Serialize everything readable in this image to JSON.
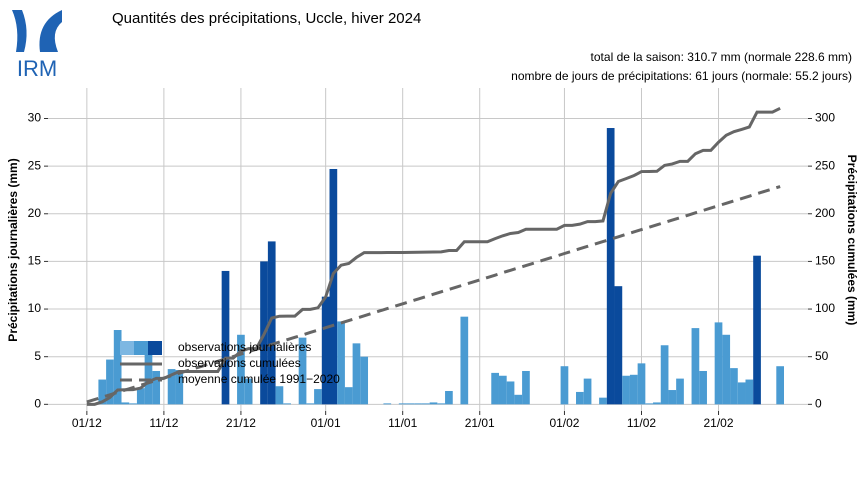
{
  "logo": {
    "text": "IRM"
  },
  "chart_data": {
    "type": "combo",
    "title": "Quantités des précipitations, Uccle, hiver 2024",
    "subtitles": [
      "total de la saison: 310.7 mm (normale 228.6 mm)",
      "nombre de jours de précipitations: 61 jours (normale: 55.2 jours)"
    ],
    "ylabel": "Précipitations journalières (mm)",
    "y2label": "Précipitations cumulées (mm)",
    "categories": [
      "01/12",
      null,
      null,
      null,
      null,
      null,
      null,
      null,
      null,
      null,
      "11/12",
      null,
      null,
      null,
      null,
      null,
      null,
      null,
      null,
      null,
      "21/12",
      null,
      null,
      null,
      null,
      null,
      null,
      null,
      null,
      null,
      null,
      "01/01",
      null,
      null,
      null,
      null,
      null,
      null,
      null,
      null,
      null,
      "11/01",
      null,
      null,
      null,
      null,
      null,
      null,
      null,
      null,
      null,
      "21/01",
      null,
      null,
      null,
      null,
      null,
      null,
      null,
      null,
      null,
      null,
      "01/02",
      null,
      null,
      null,
      null,
      null,
      null,
      null,
      null,
      null,
      "11/02",
      null,
      null,
      null,
      null,
      null,
      null,
      null,
      null,
      null,
      "21/02",
      null,
      null,
      null,
      null,
      null,
      null,
      null,
      null
    ],
    "ylim": [
      -0.7,
      33.2
    ],
    "yticks": [
      0,
      5,
      10,
      15,
      20,
      25,
      30
    ],
    "y2lim": [
      -7,
      332
    ],
    "y2ticks": [
      0,
      50,
      100,
      150,
      200,
      250,
      300
    ],
    "grid": true,
    "series": [
      {
        "name": "observations journalières",
        "type": "bar",
        "swatch": [
          "#7db7e2",
          "#4a9bd2",
          "#0a4a9c"
        ],
        "values": [
          0,
          0,
          2.6,
          4.7,
          7.8,
          0.2,
          0.1,
          1.7,
          6.6,
          3.5,
          0,
          3.7,
          3.6,
          0,
          0,
          0,
          0,
          0,
          14.0,
          0,
          7.3,
          2.7,
          0,
          15.0,
          17.1,
          1.9,
          0.1,
          0,
          7.0,
          0.1,
          1.6,
          11.3,
          24.7,
          8.7,
          1.8,
          6.4,
          5.0,
          0,
          0,
          0.1,
          0,
          0.1,
          0.1,
          0.1,
          0.1,
          0.2,
          0.1,
          1.4,
          0,
          9.2,
          0,
          0,
          0,
          3.3,
          3.0,
          2.4,
          1.0,
          3.5,
          0,
          0,
          0,
          0,
          4.0,
          0,
          1.3,
          2.7,
          0,
          0.7,
          29.0,
          12.4,
          3.0,
          3.1,
          4.3,
          0.1,
          0.2,
          6.2,
          1.5,
          2.7,
          0,
          8.0,
          3.5,
          0,
          8.6,
          7.3,
          3.8,
          2.3,
          2.6,
          15.6,
          0,
          0,
          4.0
        ],
        "colors": [
          "#4a9bd2",
          "#4a9bd2",
          "#4a9bd2",
          "#4a9bd2",
          "#4a9bd2",
          "#4a9bd2",
          "#4a9bd2",
          "#4a9bd2",
          "#4a9bd2",
          "#4a9bd2",
          "#4a9bd2",
          "#4a9bd2",
          "#4a9bd2",
          "#4a9bd2",
          "#4a9bd2",
          "#4a9bd2",
          "#4a9bd2",
          "#4a9bd2",
          "#0a4a9c",
          "#4a9bd2",
          "#4a9bd2",
          "#4a9bd2",
          "#4a9bd2",
          "#0a4a9c",
          "#0a4a9c",
          "#4a9bd2",
          "#4a9bd2",
          "#4a9bd2",
          "#4a9bd2",
          "#4a9bd2",
          "#4a9bd2",
          "#0a4a9c",
          "#0a4a9c",
          "#4a9bd2",
          "#4a9bd2",
          "#4a9bd2",
          "#4a9bd2",
          "#4a9bd2",
          "#4a9bd2",
          "#4a9bd2",
          "#4a9bd2",
          "#4a9bd2",
          "#4a9bd2",
          "#4a9bd2",
          "#4a9bd2",
          "#4a9bd2",
          "#4a9bd2",
          "#4a9bd2",
          "#4a9bd2",
          "#4a9bd2",
          "#4a9bd2",
          "#4a9bd2",
          "#4a9bd2",
          "#4a9bd2",
          "#4a9bd2",
          "#4a9bd2",
          "#4a9bd2",
          "#4a9bd2",
          "#4a9bd2",
          "#4a9bd2",
          "#4a9bd2",
          "#4a9bd2",
          "#4a9bd2",
          "#4a9bd2",
          "#4a9bd2",
          "#4a9bd2",
          "#4a9bd2",
          "#4a9bd2",
          "#0a4a9c",
          "#0a4a9c",
          "#4a9bd2",
          "#4a9bd2",
          "#4a9bd2",
          "#4a9bd2",
          "#4a9bd2",
          "#4a9bd2",
          "#4a9bd2",
          "#4a9bd2",
          "#4a9bd2",
          "#4a9bd2",
          "#4a9bd2",
          "#4a9bd2",
          "#4a9bd2",
          "#4a9bd2",
          "#4a9bd2",
          "#4a9bd2",
          "#4a9bd2",
          "#0a4a9c",
          "#4a9bd2",
          "#4a9bd2",
          "#4a9bd2"
        ]
      },
      {
        "name": "observations cumulées",
        "type": "line",
        "axis": "y2",
        "color": "#666666",
        "dashed": false,
        "values": [
          0,
          0,
          2.6,
          7.3,
          15.1,
          15.3,
          15.4,
          17.1,
          23.7,
          27.2,
          27.2,
          30.9,
          34.5,
          34.5,
          34.5,
          34.5,
          34.5,
          34.5,
          48.5,
          48.5,
          55.8,
          58.5,
          58.5,
          73.5,
          90.6,
          92.5,
          92.6,
          92.6,
          99.6,
          99.7,
          101.3,
          112.6,
          137.3,
          146.0,
          147.8,
          154.2,
          159.2,
          159.2,
          159.2,
          159.3,
          159.3,
          159.4,
          159.5,
          159.6,
          159.7,
          159.9,
          160.0,
          161.4,
          161.4,
          170.6,
          170.6,
          170.6,
          170.6,
          173.9,
          176.9,
          179.3,
          180.3,
          183.8,
          183.8,
          183.8,
          183.8,
          183.8,
          187.8,
          187.8,
          189.1,
          191.8,
          191.8,
          192.5,
          221.5,
          233.9,
          236.9,
          240.0,
          244.3,
          244.4,
          244.6,
          250.8,
          252.3,
          255.0,
          255.0,
          263.0,
          266.5,
          266.5,
          275.1,
          282.4,
          286.2,
          288.5,
          291.1,
          306.7,
          306.7,
          306.7,
          310.7
        ]
      },
      {
        "name": "moyenne cumulée 1991−2020",
        "type": "line",
        "axis": "y2",
        "color": "#666666",
        "dashed": true,
        "values": [
          2.5,
          5.0,
          7.5,
          10.0,
          12.6,
          15.1,
          17.6,
          20.1,
          22.6,
          25.1,
          27.6,
          30.1,
          32.7,
          35.2,
          37.7,
          40.2,
          42.7,
          45.2,
          47.7,
          50.2,
          52.8,
          55.3,
          57.8,
          60.3,
          62.8,
          65.3,
          67.8,
          70.3,
          72.8,
          75.4,
          77.9,
          80.4,
          82.9,
          85.4,
          87.9,
          90.4,
          92.9,
          95.5,
          98.0,
          100.5,
          103.0,
          105.5,
          108.0,
          110.5,
          113.0,
          115.6,
          118.1,
          120.6,
          123.1,
          125.6,
          128.1,
          130.6,
          133.1,
          135.6,
          138.2,
          140.7,
          143.2,
          145.7,
          148.2,
          150.7,
          153.2,
          155.7,
          158.3,
          160.8,
          163.3,
          165.8,
          168.3,
          170.8,
          173.3,
          175.8,
          178.4,
          180.9,
          183.4,
          185.9,
          188.4,
          190.9,
          193.4,
          195.9,
          198.4,
          201.0,
          203.5,
          206.0,
          208.5,
          211.0,
          213.5,
          216.0,
          218.5,
          221.1,
          223.6,
          226.1,
          228.6
        ]
      }
    ]
  }
}
